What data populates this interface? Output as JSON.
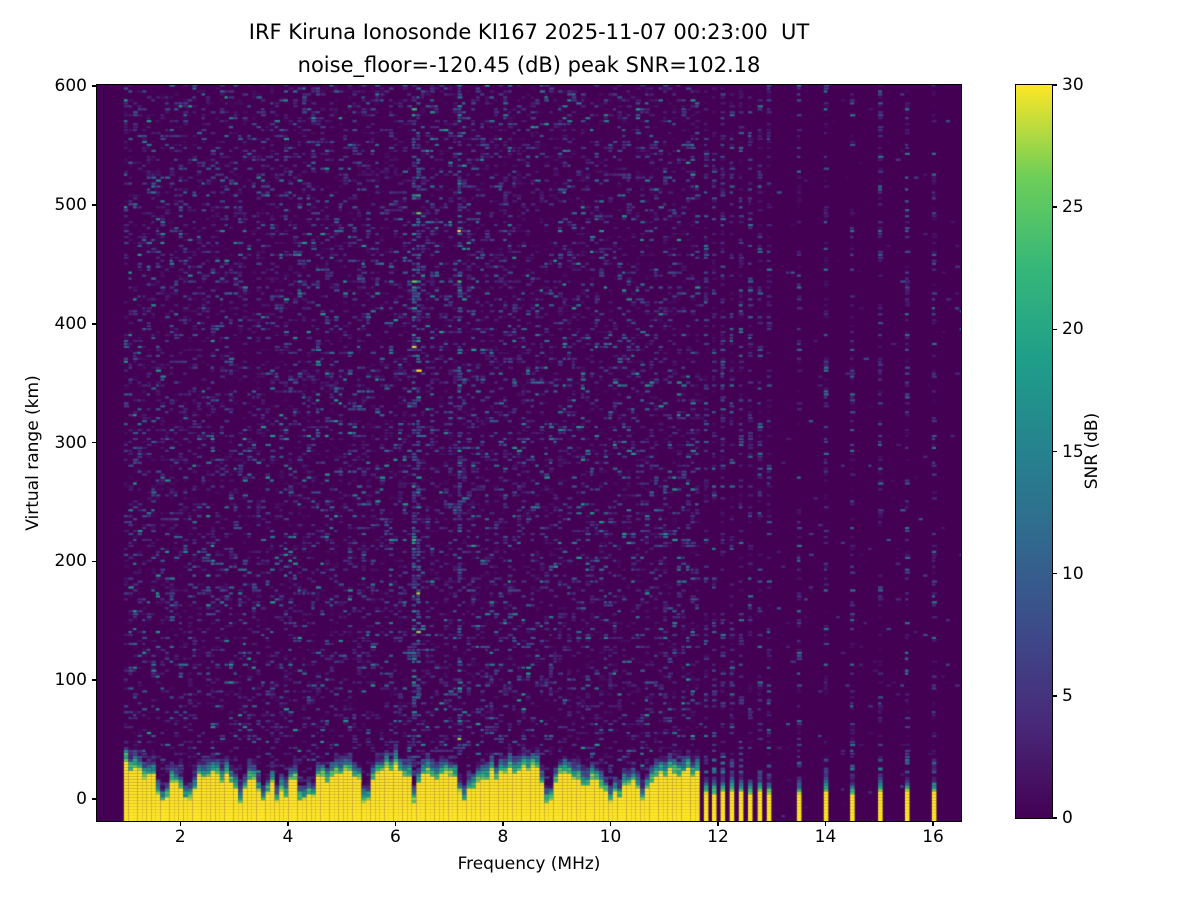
{
  "chart_data": {
    "type": "heatmap",
    "title": "IRF Kiruna Ionosonde KI167 2025-11-07 00:23:00  UT",
    "subtitle": "noise_floor=-120.45 (dB) peak SNR=102.18",
    "xlabel": "Frequency (MHz)",
    "ylabel": "Virtual range (km)",
    "colorbar_label": "SNR (dB)",
    "x_ticks": [
      2,
      4,
      6,
      8,
      10,
      12,
      14,
      16
    ],
    "y_ticks": [
      0,
      100,
      200,
      300,
      400,
      500,
      600
    ],
    "colorbar_ticks": [
      0,
      5,
      10,
      15,
      20,
      25,
      30
    ],
    "xlim": [
      0.45,
      16.52
    ],
    "ylim": [
      -18.5,
      601
    ],
    "clim": [
      0,
      30
    ],
    "grid": false,
    "legend": "none",
    "colormap": "viridis",
    "colormap_stops": [
      {
        "t": 0.0,
        "c": "#440154"
      },
      {
        "t": 0.125,
        "c": "#482878"
      },
      {
        "t": 0.25,
        "c": "#3e4989"
      },
      {
        "t": 0.375,
        "c": "#31688e"
      },
      {
        "t": 0.5,
        "c": "#26828e"
      },
      {
        "t": 0.625,
        "c": "#1f9e89"
      },
      {
        "t": 0.75,
        "c": "#35b779"
      },
      {
        "t": 0.875,
        "c": "#6ece58"
      },
      {
        "t": 1.0,
        "c": "#fde725"
      }
    ],
    "freq_step_mhz": 0.085,
    "range_gate_km": 2.5,
    "continuous_sweep": {
      "f_start_mhz": 0.95,
      "f_end_mhz": 11.61,
      "ground_echo_top_km": 25,
      "ground_echo_jitter_km": 5,
      "transition_km": 12
    },
    "absorption_notches_mhz": [
      1.62,
      2.1,
      3.05,
      3.5,
      3.78,
      4.28,
      5.4,
      6.28,
      7.25,
      8.82,
      9.98,
      10.55
    ],
    "rfi_columns_mhz": [
      6.35,
      7.12
    ],
    "discrete_frequencies_mhz": [
      11.78,
      11.93,
      12.09,
      12.26,
      12.43,
      12.6,
      12.78,
      12.95,
      13.51,
      14.01,
      14.5,
      15.02,
      15.52,
      16.02
    ],
    "discrete_echo_top_km": 9,
    "noise": {
      "left_density": 0.34,
      "column_density": 0.42,
      "background_density": 0.02,
      "mean_snr_db": 4.2
    },
    "seed": 20251107
  }
}
